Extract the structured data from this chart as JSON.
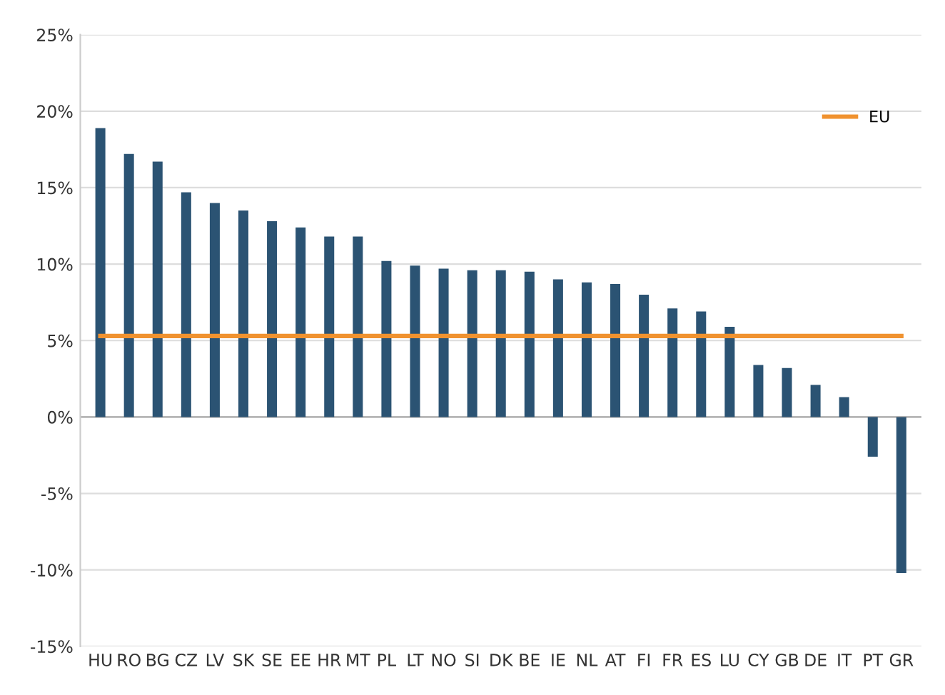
{
  "chart_data": {
    "type": "bar",
    "categories": [
      "HU",
      "RO",
      "BG",
      "CZ",
      "LV",
      "SK",
      "SE",
      "EE",
      "HR",
      "MT",
      "PL",
      "LT",
      "NO",
      "SI",
      "DK",
      "BE",
      "IE",
      "NL",
      "AT",
      "FI",
      "FR",
      "ES",
      "LU",
      "CY",
      "GB",
      "DE",
      "IT",
      "PT",
      "GR"
    ],
    "series": [
      {
        "color": "#2b5373",
        "values": [
          18.9,
          17.2,
          16.7,
          14.7,
          14.0,
          13.5,
          12.8,
          12.4,
          11.8,
          11.8,
          10.2,
          9.9,
          9.7,
          9.6,
          9.6,
          9.5,
          9.0,
          8.8,
          8.7,
          8.0,
          7.1,
          6.9,
          5.9,
          3.4,
          3.2,
          2.1,
          1.3,
          -2.6,
          -10.2
        ]
      },
      {
        "type": "line",
        "name": "EU",
        "color": "#f0922f",
        "values": [
          5.3,
          5.3,
          5.3,
          5.3,
          5.3,
          5.3,
          5.3,
          5.3,
          5.3,
          5.3,
          5.3,
          5.3,
          5.3,
          5.3,
          5.3,
          5.3,
          5.3,
          5.3,
          5.3,
          5.3,
          5.3,
          5.3,
          5.3,
          5.3,
          5.3,
          5.3,
          5.3,
          5.3,
          5.3
        ]
      }
    ],
    "ylim": [
      -15,
      25
    ],
    "yticks": [
      {
        "value": -15,
        "label": "-15%"
      },
      {
        "value": -10,
        "label": "-10%"
      },
      {
        "value": -5,
        "label": "-5%"
      },
      {
        "value": 0,
        "label": "0%"
      },
      {
        "value": 5,
        "label": "5%"
      },
      {
        "value": 10,
        "label": "10%"
      },
      {
        "value": 15,
        "label": "15%"
      },
      {
        "value": 20,
        "label": "20%"
      },
      {
        "value": 25,
        "label": "25%"
      }
    ],
    "grid": "y",
    "legend": "top right",
    "marker": "none"
  }
}
